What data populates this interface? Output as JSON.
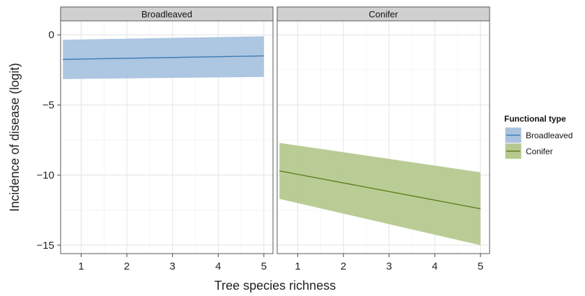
{
  "chart_data": {
    "type": "line",
    "facets": [
      "Broadleaved",
      "Conifer"
    ],
    "xlabel": "Tree species richness",
    "ylabel": "Incidence of disease (logit)",
    "xlim": [
      0.55,
      5.2
    ],
    "ylim": [
      -15.6,
      1.0
    ],
    "x_ticks": [
      1,
      2,
      3,
      4,
      5
    ],
    "y_ticks": [
      0,
      -5,
      -10,
      -15
    ],
    "grid": true,
    "legend": {
      "title": "Functional type",
      "position": "right"
    },
    "series": [
      {
        "name": "Broadleaved",
        "facet": "Broadleaved",
        "color": "#3d7ab5",
        "fill": "#a9c3df",
        "x": [
          0.6,
          5.0
        ],
        "y": [
          -1.75,
          -1.5
        ],
        "y_lower": [
          -3.15,
          -3.0
        ],
        "y_upper": [
          -0.35,
          -0.1
        ]
      },
      {
        "name": "Conifer",
        "facet": "Conifer",
        "color": "#5a7f1e",
        "fill": "#b6c98f",
        "x": [
          0.6,
          5.0
        ],
        "y": [
          -9.7,
          -12.4
        ],
        "y_lower": [
          -11.7,
          -15.0
        ],
        "y_upper": [
          -7.7,
          -9.8
        ]
      }
    ]
  }
}
